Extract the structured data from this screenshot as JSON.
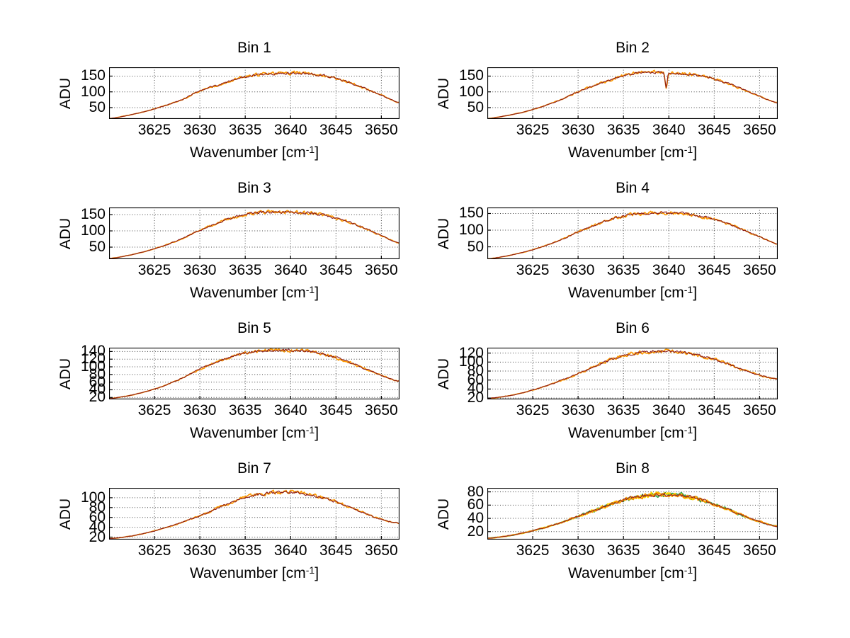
{
  "figure": {
    "background_color": "#ffffff",
    "ylabel": "ADU",
    "xlabel_prefix": "Wavenumber [cm",
    "xlabel_superscript": "-1",
    "xlabel_suffix": "]",
    "grid": "dotted",
    "axis_color": "#000000",
    "grid_color": "#444444",
    "x_ticks": [
      3625,
      3630,
      3635,
      3640,
      3645,
      3650
    ],
    "x_range": [
      3620,
      3652
    ]
  },
  "chart_data": [
    {
      "type": "line",
      "title": "Bin 1",
      "xlabel": "Wavenumber [cm-1]",
      "ylabel": "ADU",
      "x_range": [
        3620,
        3652
      ],
      "x_ticks": [
        3625,
        3630,
        3635,
        3640,
        3645,
        3650
      ],
      "y_ticks": [
        50,
        100,
        150
      ],
      "y_range": [
        14,
        178
      ],
      "x": [
        3620,
        3622,
        3624,
        3626,
        3628,
        3630,
        3632,
        3634,
        3636,
        3638,
        3640,
        3642,
        3644,
        3646,
        3648,
        3650,
        3652
      ],
      "adu": [
        15,
        25,
        38,
        55,
        75,
        103,
        122,
        140,
        153,
        158,
        160,
        158,
        150,
        135,
        113,
        90,
        65
      ],
      "noise_amplitude": 3,
      "trace_colors": [
        "#fb9902",
        "#8b1b1b"
      ],
      "spike": null
    },
    {
      "type": "line",
      "title": "Bin 2",
      "xlabel": "Wavenumber [cm-1]",
      "ylabel": "ADU",
      "x_range": [
        3620,
        3652
      ],
      "x_ticks": [
        3625,
        3630,
        3635,
        3640,
        3645,
        3650
      ],
      "y_ticks": [
        50,
        100,
        150
      ],
      "y_range": [
        14,
        178
      ],
      "x": [
        3620,
        3622,
        3624,
        3626,
        3628,
        3630,
        3632,
        3634,
        3636,
        3638,
        3640,
        3642,
        3644,
        3646,
        3648,
        3650,
        3652
      ],
      "adu": [
        15,
        24,
        36,
        53,
        74,
        100,
        122,
        142,
        158,
        162,
        160,
        157,
        148,
        132,
        110,
        86,
        65
      ],
      "noise_amplitude": 3,
      "trace_colors": [
        "#fb9902",
        "#8b1b1b"
      ],
      "spike": {
        "x": 3639.7,
        "depth": 48,
        "width": 0.16
      }
    },
    {
      "type": "line",
      "title": "Bin 3",
      "xlabel": "Wavenumber [cm-1]",
      "ylabel": "ADU",
      "x_range": [
        3620,
        3652
      ],
      "x_ticks": [
        3625,
        3630,
        3635,
        3640,
        3645,
        3650
      ],
      "y_ticks": [
        50,
        100,
        150
      ],
      "y_range": [
        13,
        172
      ],
      "x": [
        3620,
        3622,
        3624,
        3626,
        3628,
        3630,
        3632,
        3634,
        3636,
        3638,
        3640,
        3642,
        3644,
        3646,
        3648,
        3650,
        3652
      ],
      "adu": [
        15,
        24,
        37,
        54,
        76,
        102,
        124,
        143,
        155,
        158,
        157,
        155,
        146,
        131,
        110,
        85,
        62
      ],
      "noise_amplitude": 3,
      "trace_colors": [
        "#fb9902",
        "#8b1b1b"
      ],
      "spike": null
    },
    {
      "type": "line",
      "title": "Bin 4",
      "xlabel": "Wavenumber [cm-1]",
      "ylabel": "ADU",
      "x_range": [
        3620,
        3652
      ],
      "x_ticks": [
        3625,
        3630,
        3635,
        3640,
        3645,
        3650
      ],
      "y_ticks": [
        50,
        100,
        150
      ],
      "y_range": [
        13,
        168
      ],
      "x": [
        3620,
        3622,
        3624,
        3626,
        3628,
        3630,
        3632,
        3634,
        3636,
        3638,
        3640,
        3642,
        3644,
        3646,
        3648,
        3650,
        3652
      ],
      "adu": [
        14,
        22,
        34,
        50,
        70,
        95,
        117,
        136,
        147,
        151,
        152,
        148,
        139,
        124,
        103,
        80,
        58
      ],
      "noise_amplitude": 3,
      "trace_colors": [
        "#fb9902",
        "#8b1b1b"
      ],
      "spike": null
    },
    {
      "type": "line",
      "title": "Bin 5",
      "xlabel": "Wavenumber [cm-1]",
      "ylabel": "ADU",
      "x_range": [
        3620,
        3652
      ],
      "x_ticks": [
        3625,
        3630,
        3635,
        3640,
        3645,
        3650
      ],
      "y_ticks": [
        20,
        40,
        60,
        80,
        100,
        120,
        140
      ],
      "y_range": [
        15,
        150
      ],
      "x": [
        3620,
        3622,
        3624,
        3626,
        3628,
        3630,
        3632,
        3634,
        3636,
        3638,
        3640,
        3642,
        3644,
        3646,
        3648,
        3650,
        3652
      ],
      "adu": [
        17,
        24,
        35,
        50,
        70,
        94,
        114,
        130,
        140,
        143,
        143,
        140,
        131,
        116,
        97,
        78,
        62
      ],
      "noise_amplitude": 2.5,
      "trace_colors": [
        "#fb9902",
        "#8b1b1b"
      ],
      "spike": null
    },
    {
      "type": "line",
      "title": "Bin 6",
      "xlabel": "Wavenumber [cm-1]",
      "ylabel": "ADU",
      "x_range": [
        3620,
        3652
      ],
      "x_ticks": [
        3625,
        3630,
        3635,
        3640,
        3645,
        3650
      ],
      "y_ticks": [
        20,
        40,
        60,
        80,
        100,
        120
      ],
      "y_range": [
        17,
        132
      ],
      "x": [
        3620,
        3622,
        3624,
        3626,
        3628,
        3630,
        3632,
        3634,
        3636,
        3638,
        3640,
        3642,
        3644,
        3646,
        3648,
        3650,
        3652
      ],
      "adu": [
        19,
        24,
        32,
        44,
        58,
        74,
        92,
        108,
        119,
        124,
        124,
        120,
        112,
        99,
        84,
        71,
        62
      ],
      "noise_amplitude": 2.5,
      "trace_colors": [
        "#fb9902",
        "#8b1b1b"
      ],
      "spike": null
    },
    {
      "type": "line",
      "title": "Bin 7",
      "xlabel": "Wavenumber [cm-1]",
      "ylabel": "ADU",
      "x_range": [
        3620,
        3652
      ],
      "x_ticks": [
        3625,
        3630,
        3635,
        3640,
        3645,
        3650
      ],
      "y_ticks": [
        20,
        40,
        60,
        80,
        100
      ],
      "y_range": [
        15,
        120
      ],
      "x": [
        3620,
        3622,
        3624,
        3626,
        3628,
        3630,
        3632,
        3634,
        3636,
        3638,
        3640,
        3642,
        3644,
        3646,
        3648,
        3650,
        3652
      ],
      "adu": [
        17,
        21,
        28,
        38,
        50,
        63,
        79,
        94,
        105,
        110,
        111,
        107,
        98,
        85,
        70,
        56,
        48
      ],
      "noise_amplitude": 2.2,
      "trace_colors": [
        "#fb9902",
        "#8b1b1b"
      ],
      "spike": null
    },
    {
      "type": "line",
      "title": "Bin 8",
      "xlabel": "Wavenumber [cm-1]",
      "ylabel": "ADU",
      "x_range": [
        3620,
        3652
      ],
      "x_ticks": [
        3625,
        3630,
        3635,
        3640,
        3645,
        3650
      ],
      "y_ticks": [
        20,
        40,
        60,
        80
      ],
      "y_range": [
        8,
        86
      ],
      "x": [
        3620,
        3622,
        3624,
        3626,
        3628,
        3630,
        3632,
        3634,
        3636,
        3638,
        3640,
        3642,
        3644,
        3646,
        3648,
        3650,
        3652
      ],
      "adu": [
        10,
        13,
        18,
        25,
        33,
        43,
        53,
        63,
        71,
        75,
        76,
        73,
        66,
        56,
        45,
        35,
        28
      ],
      "noise_amplitude": 2,
      "trace_colors": [
        "#2fa24a",
        "#ffd400",
        "#fb9902",
        "#97201c"
      ],
      "spike": null
    }
  ]
}
